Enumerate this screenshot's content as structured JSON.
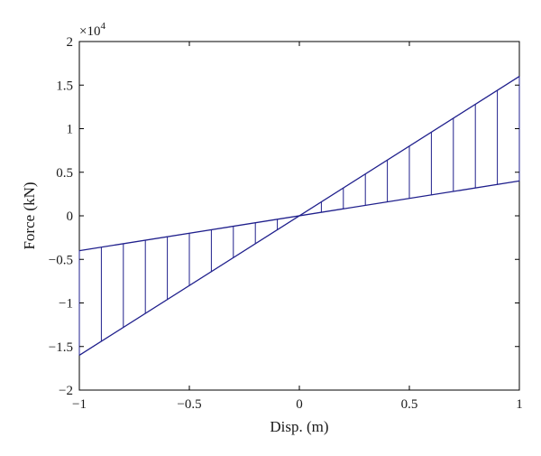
{
  "chart_data": {
    "type": "line",
    "title": "",
    "xlabel": "Disp. (m)",
    "ylabel": "Force (kN)",
    "y_multiplier_label": "×10",
    "y_multiplier_exponent": "4",
    "xlim": [
      -1,
      1
    ],
    "ylim": [
      -2,
      2
    ],
    "xticks": [
      -1,
      -0.5,
      0,
      0.5,
      1
    ],
    "xtick_labels": [
      "−1",
      "−0.5",
      "0",
      "0.5",
      "1"
    ],
    "yticks": [
      -2,
      -1.5,
      -1,
      -0.5,
      0,
      0.5,
      1,
      1.5,
      2
    ],
    "ytick_labels": [
      "−2",
      "−1.5",
      "−1",
      "−0.5",
      "0",
      "0.5",
      "1",
      "1.5",
      "2"
    ],
    "grid": false,
    "line_color": "#1f1f8c",
    "series": [
      {
        "x": [
          -1,
          1
        ],
        "y": [
          -1.6,
          1.6
        ]
      },
      {
        "x": [
          -1,
          1
        ],
        "y": [
          -0.4,
          0.4
        ]
      }
    ],
    "hatch_x": [
      -1,
      -0.9,
      -0.8,
      -0.7,
      -0.6,
      -0.5,
      -0.4,
      -0.3,
      -0.2,
      -0.1,
      0,
      0.1,
      0.2,
      0.3,
      0.4,
      0.5,
      0.6,
      0.7,
      0.8,
      0.9,
      1
    ]
  }
}
